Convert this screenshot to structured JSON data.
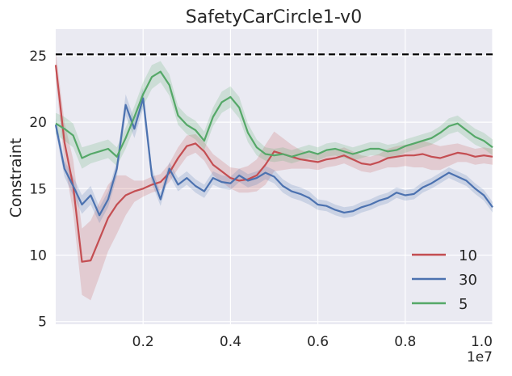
{
  "chart_data": {
    "type": "line",
    "title": "SafetyCarCircle1-v0",
    "xlabel": "",
    "ylabel": "Constraint",
    "x_offset_label": "1e7",
    "xlim": [
      0.0,
      1.0
    ],
    "ylim": [
      4.8,
      27.0
    ],
    "x_ticks": [
      0.2,
      0.4,
      0.6,
      0.8,
      1.0
    ],
    "x_tick_labels": [
      "0.2",
      "0.4",
      "0.6",
      "0.8",
      "1.0"
    ],
    "y_ticks": [
      5,
      10,
      15,
      20,
      25
    ],
    "y_tick_labels": [
      "5",
      "10",
      "15",
      "20",
      "25"
    ],
    "x_unit_scale": 10000000,
    "reference_line": {
      "y": 25.1,
      "style": "dashed",
      "color": "#000000"
    },
    "legend": {
      "position": "lower-right",
      "entries": [
        "10",
        "30",
        "5"
      ]
    },
    "x": [
      0.0,
      0.02,
      0.04,
      0.06,
      0.08,
      0.1,
      0.12,
      0.14,
      0.16,
      0.18,
      0.2,
      0.22,
      0.24,
      0.26,
      0.28,
      0.3,
      0.32,
      0.34,
      0.36,
      0.38,
      0.4,
      0.42,
      0.44,
      0.46,
      0.48,
      0.5,
      0.52,
      0.54,
      0.56,
      0.58,
      0.6,
      0.62,
      0.64,
      0.66,
      0.68,
      0.7,
      0.72,
      0.74,
      0.76,
      0.78,
      0.8,
      0.82,
      0.84,
      0.86,
      0.88,
      0.9,
      0.92,
      0.94,
      0.96,
      0.98,
      1.0
    ],
    "series": [
      {
        "name": "10",
        "color": "#c44e52",
        "values": [
          24.3,
          18.5,
          15.2,
          9.5,
          9.6,
          11.2,
          12.8,
          13.8,
          14.5,
          14.8,
          15.0,
          15.3,
          15.5,
          16.2,
          17.3,
          18.2,
          18.4,
          17.8,
          16.8,
          16.3,
          15.8,
          15.6,
          15.7,
          16.0,
          16.8,
          17.8,
          17.6,
          17.4,
          17.2,
          17.1,
          17.0,
          17.2,
          17.3,
          17.5,
          17.2,
          16.9,
          16.8,
          17.0,
          17.3,
          17.4,
          17.5,
          17.5,
          17.6,
          17.4,
          17.3,
          17.5,
          17.7,
          17.6,
          17.4,
          17.5,
          17.4
        ],
        "spread": [
          1.0,
          1.5,
          2.0,
          2.5,
          3.0,
          2.8,
          2.5,
          2.2,
          1.5,
          0.8,
          0.6,
          0.6,
          0.6,
          0.7,
          0.8,
          0.8,
          0.7,
          0.7,
          0.8,
          0.8,
          0.8,
          0.9,
          1.0,
          1.2,
          1.5,
          1.5,
          1.2,
          0.9,
          0.7,
          0.6,
          0.6,
          0.6,
          0.6,
          0.6,
          0.6,
          0.6,
          0.6,
          0.6,
          0.7,
          0.8,
          0.8,
          0.9,
          1.0,
          1.0,
          0.9,
          0.8,
          0.7,
          0.6,
          0.6,
          0.6,
          0.6
        ]
      },
      {
        "name": "30",
        "color": "#4c72b0",
        "values": [
          19.8,
          16.5,
          15.2,
          13.8,
          14.5,
          13.0,
          14.2,
          16.5,
          21.3,
          19.5,
          21.8,
          16.0,
          14.2,
          16.5,
          15.3,
          15.8,
          15.2,
          14.8,
          15.8,
          15.5,
          15.4,
          16.0,
          15.6,
          15.8,
          16.2,
          15.9,
          15.2,
          14.8,
          14.6,
          14.3,
          13.8,
          13.7,
          13.4,
          13.2,
          13.3,
          13.6,
          13.8,
          14.1,
          14.3,
          14.7,
          14.5,
          14.6,
          15.1,
          15.4,
          15.8,
          16.2,
          15.9,
          15.6,
          15.0,
          14.5,
          13.6
        ],
        "spread": [
          0.5,
          0.6,
          0.7,
          0.7,
          0.7,
          0.6,
          0.6,
          0.6,
          0.8,
          0.7,
          0.8,
          0.6,
          0.5,
          0.5,
          0.5,
          0.5,
          0.5,
          0.5,
          0.5,
          0.5,
          0.5,
          0.5,
          0.5,
          0.5,
          0.5,
          0.5,
          0.5,
          0.5,
          0.5,
          0.5,
          0.4,
          0.4,
          0.4,
          0.4,
          0.4,
          0.4,
          0.4,
          0.4,
          0.4,
          0.4,
          0.4,
          0.4,
          0.4,
          0.4,
          0.4,
          0.4,
          0.4,
          0.4,
          0.4,
          0.4,
          0.4
        ]
      },
      {
        "name": "5",
        "color": "#55a868",
        "values": [
          19.9,
          19.5,
          19.0,
          17.3,
          17.6,
          17.8,
          18.0,
          17.4,
          18.8,
          20.4,
          22.1,
          23.4,
          23.8,
          22.8,
          20.5,
          19.8,
          19.4,
          18.6,
          20.4,
          21.5,
          21.9,
          21.1,
          19.2,
          18.1,
          17.6,
          17.5,
          17.6,
          17.4,
          17.6,
          17.8,
          17.6,
          17.9,
          18.0,
          17.8,
          17.6,
          17.8,
          18.0,
          18.0,
          17.8,
          17.9,
          18.2,
          18.4,
          18.6,
          18.8,
          19.2,
          19.7,
          19.9,
          19.4,
          18.9,
          18.6,
          18.1
        ],
        "spread": [
          0.8,
          0.9,
          0.9,
          0.8,
          0.7,
          0.7,
          0.7,
          0.7,
          0.8,
          0.8,
          0.9,
          0.9,
          0.8,
          0.8,
          0.7,
          0.7,
          0.7,
          0.7,
          0.7,
          0.8,
          0.8,
          0.8,
          0.7,
          0.6,
          0.5,
          0.5,
          0.5,
          0.5,
          0.5,
          0.5,
          0.5,
          0.5,
          0.5,
          0.5,
          0.5,
          0.5,
          0.5,
          0.5,
          0.5,
          0.5,
          0.5,
          0.5,
          0.5,
          0.5,
          0.5,
          0.6,
          0.6,
          0.6,
          0.6,
          0.6,
          0.6
        ]
      }
    ]
  }
}
